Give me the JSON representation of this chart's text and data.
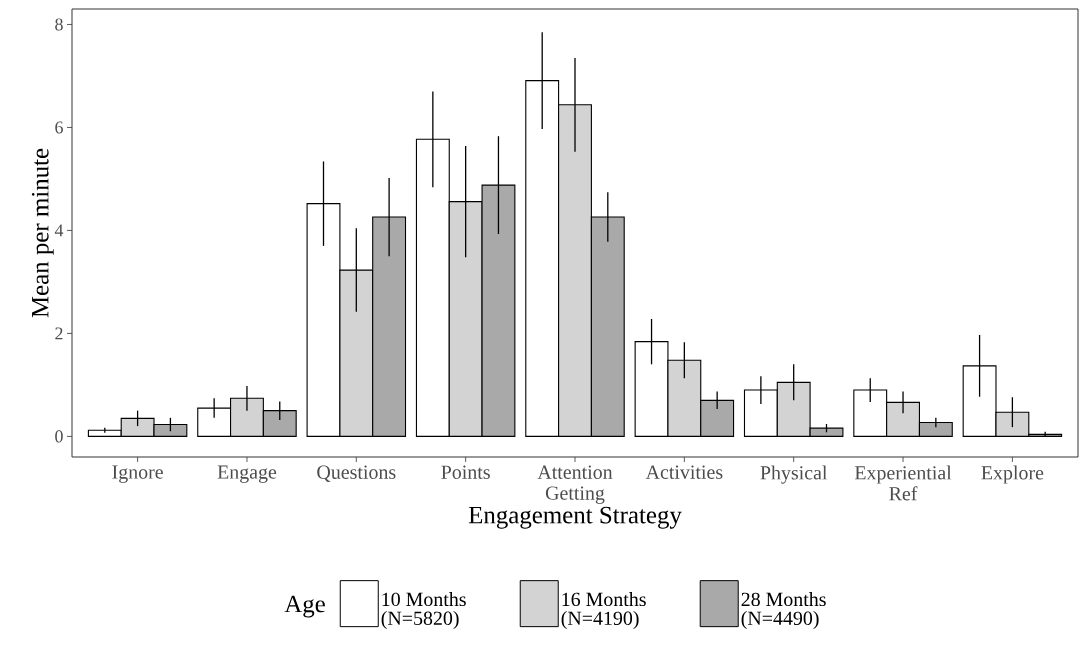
{
  "chart_data": {
    "type": "bar",
    "xlabel": "Engagement Strategy",
    "ylabel": "Mean per minute",
    "legend_title": "Age",
    "categories": [
      "Ignore",
      "Engage",
      "Questions",
      "Points",
      "Attention Getting",
      "Activities",
      "Physical",
      "Experiential Ref",
      "Explore"
    ],
    "series": [
      {
        "name": "10 Months (N=5820)",
        "color": "#ffffff",
        "values": [
          0.12,
          0.55,
          4.52,
          5.77,
          6.91,
          1.84,
          0.9,
          0.9,
          1.37
        ],
        "errors": [
          0.05,
          0.19,
          0.82,
          0.93,
          0.94,
          0.44,
          0.27,
          0.23,
          0.6
        ]
      },
      {
        "name": "16 Months (N=4190)",
        "color": "#d3d3d3",
        "values": [
          0.35,
          0.74,
          3.23,
          4.56,
          6.44,
          1.48,
          1.05,
          0.66,
          0.47
        ],
        "errors": [
          0.15,
          0.24,
          0.81,
          1.08,
          0.91,
          0.35,
          0.35,
          0.21,
          0.29
        ]
      },
      {
        "name": "28 Months (N=4490)",
        "color": "#a9a9a9",
        "values": [
          0.23,
          0.5,
          4.26,
          4.88,
          4.26,
          0.7,
          0.16,
          0.27,
          0.04
        ],
        "errors": [
          0.13,
          0.18,
          0.76,
          0.95,
          0.48,
          0.17,
          0.08,
          0.09,
          [
            0,
            0.09
          ]
        ]
      }
    ],
    "ylim": [
      -0.4,
      8.3
    ],
    "yticks": [
      0,
      2,
      4,
      6,
      8
    ],
    "grid": false,
    "legend": "bottom"
  }
}
